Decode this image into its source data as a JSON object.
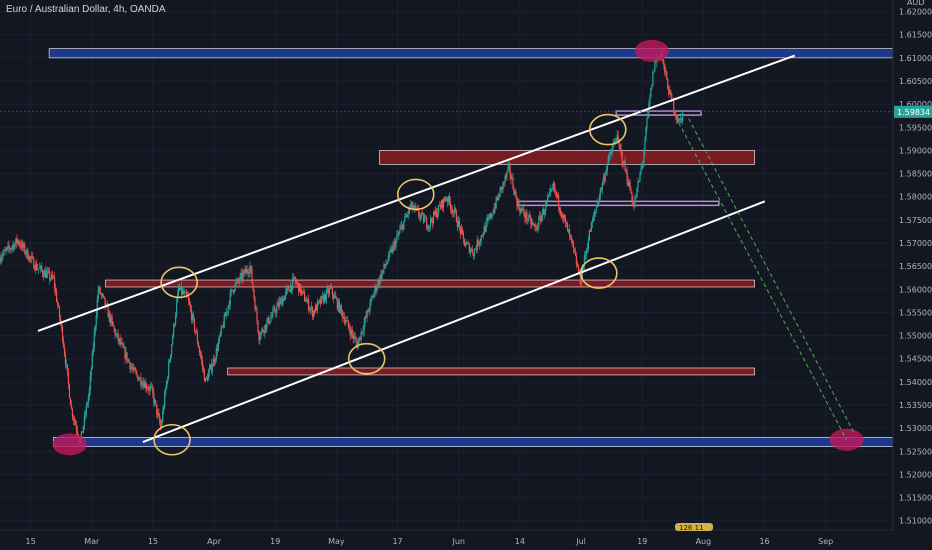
{
  "header": {
    "symbol_title": "Euro / Australian Dollar, 4h, OANDA",
    "currency": "AUD"
  },
  "price_label": "1.59834",
  "bottom_badge": "126 11",
  "colors": {
    "background": "#131722",
    "candle_up": "#26a69a",
    "candle_down": "#ef5350",
    "blue_zone": "#1e3f9e",
    "red_zone": "#8b1d24",
    "purple_zone": "#b48ed8",
    "channel_line": "#ffffff",
    "circle_stroke": "#e9c46a",
    "pivot_marker": "#c2185b",
    "projection": "#4caf50"
  },
  "chart_data": {
    "type": "candlestick",
    "title": "Euro / Australian Dollar, 4h, OANDA",
    "yaxis": {
      "ticks": [
        "1.62000",
        "1.61500",
        "1.61000",
        "1.60500",
        "1.60000",
        "1.59500",
        "1.59000",
        "1.58500",
        "1.58000",
        "1.57500",
        "1.57000",
        "1.56500",
        "1.56000",
        "1.55500",
        "1.55000",
        "1.54500",
        "1.54000",
        "1.53500",
        "1.53000",
        "1.52500",
        "1.52000",
        "1.51500",
        "1.51000"
      ],
      "range": [
        1.508,
        1.6225
      ]
    },
    "xaxis": {
      "ticks": [
        "15",
        "Mar",
        "15",
        "Apr",
        "19",
        "May",
        "17",
        "Jun",
        "14",
        "Jul",
        "19",
        "Aug",
        "16",
        "Sep"
      ]
    },
    "current_price": 1.59834,
    "price_path": [
      [
        0.0,
        1.567
      ],
      [
        0.02,
        1.5705
      ],
      [
        0.04,
        1.565
      ],
      [
        0.06,
        1.562
      ],
      [
        0.07,
        1.55
      ],
      [
        0.08,
        1.534
      ],
      [
        0.09,
        1.527
      ],
      [
        0.1,
        1.538
      ],
      [
        0.11,
        1.56
      ],
      [
        0.115,
        1.558
      ],
      [
        0.13,
        1.55
      ],
      [
        0.15,
        1.542
      ],
      [
        0.17,
        1.538
      ],
      [
        0.18,
        1.53
      ],
      [
        0.19,
        1.545
      ],
      [
        0.2,
        1.56
      ],
      [
        0.21,
        1.558
      ],
      [
        0.22,
        1.55
      ],
      [
        0.23,
        1.54
      ],
      [
        0.24,
        1.545
      ],
      [
        0.26,
        1.56
      ],
      [
        0.28,
        1.565
      ],
      [
        0.29,
        1.55
      ],
      [
        0.31,
        1.556
      ],
      [
        0.33,
        1.562
      ],
      [
        0.35,
        1.555
      ],
      [
        0.37,
        1.56
      ],
      [
        0.39,
        1.552
      ],
      [
        0.4,
        1.548
      ],
      [
        0.42,
        1.56
      ],
      [
        0.44,
        1.569
      ],
      [
        0.46,
        1.578
      ],
      [
        0.48,
        1.574
      ],
      [
        0.5,
        1.58
      ],
      [
        0.51,
        1.576
      ],
      [
        0.52,
        1.57
      ],
      [
        0.53,
        1.568
      ],
      [
        0.55,
        1.576
      ],
      [
        0.57,
        1.586
      ],
      [
        0.58,
        1.578
      ],
      [
        0.6,
        1.573
      ],
      [
        0.62,
        1.582
      ],
      [
        0.64,
        1.57
      ],
      [
        0.65,
        1.562
      ],
      [
        0.66,
        1.572
      ],
      [
        0.68,
        1.587
      ],
      [
        0.69,
        1.593
      ],
      [
        0.7,
        1.586
      ],
      [
        0.71,
        1.578
      ],
      [
        0.72,
        1.588
      ],
      [
        0.725,
        1.597
      ],
      [
        0.733,
        1.609
      ],
      [
        0.74,
        1.611
      ],
      [
        0.75,
        1.602
      ],
      [
        0.76,
        1.596
      ],
      [
        0.766,
        1.5983
      ]
    ],
    "zones": [
      {
        "color": "blue",
        "from": 1.61,
        "to": 1.612
      },
      {
        "color": "blue",
        "from": 1.526,
        "to": 1.528
      },
      {
        "color": "red",
        "from": 1.587,
        "to": 1.59
      },
      {
        "color": "red",
        "from": 1.5605,
        "to": 1.562
      },
      {
        "color": "red",
        "from": 1.5415,
        "to": 1.543
      },
      {
        "color": "purple",
        "from": 1.5977,
        "to": 1.5985
      },
      {
        "color": "purple",
        "from": 1.5782,
        "to": 1.579
      }
    ],
    "channel": {
      "upper": [
        [
          0.0,
          1.551
        ],
        [
          0.89,
          1.6105
        ]
      ],
      "lower": [
        [
          0.16,
          1.527
        ],
        [
          0.89,
          1.579
        ]
      ]
    },
    "projection_end_price": 1.5275
  }
}
